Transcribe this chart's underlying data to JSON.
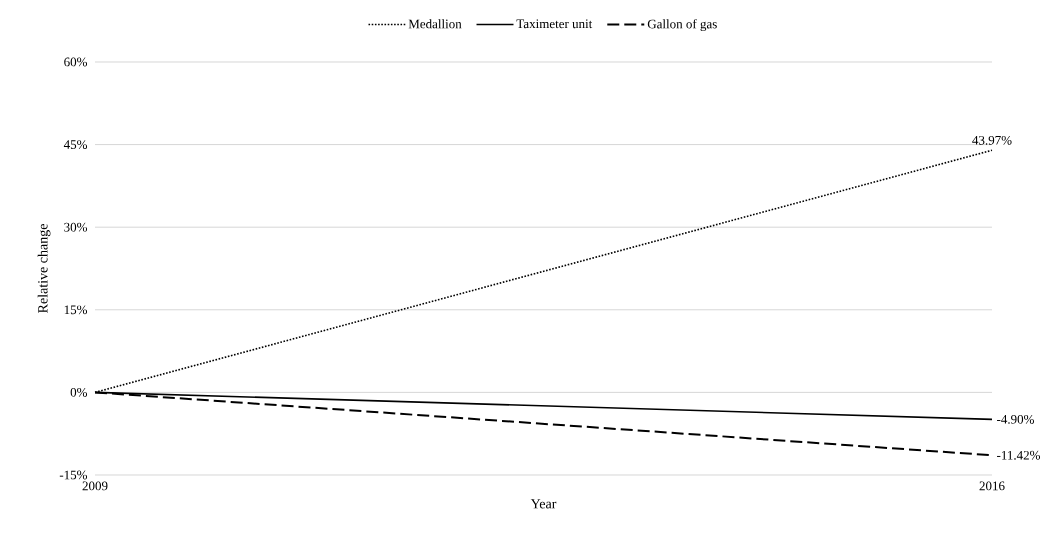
{
  "chart_data": {
    "type": "line",
    "xlabel": "Year",
    "ylabel": "Relative change",
    "x": [
      2009,
      2016
    ],
    "xlim": [
      2009,
      2016
    ],
    "xticks": [
      2009,
      2016
    ],
    "ylim": [
      -15,
      60
    ],
    "yticks": [
      {
        "value": -15,
        "label": "-15%"
      },
      {
        "value": 0,
        "label": "0%"
      },
      {
        "value": 15,
        "label": "15%"
      },
      {
        "value": 30,
        "label": "30%"
      },
      {
        "value": 45,
        "label": "45%"
      },
      {
        "value": 60,
        "label": "60%"
      }
    ],
    "grid": "y",
    "legend": "top",
    "marker": "none",
    "series": [
      {
        "name": "Medallion",
        "color": "#000000",
        "line_style": "dotted",
        "values": [
          0,
          43.97
        ],
        "value_labels": [
          null,
          "43.97%"
        ]
      },
      {
        "name": "Taximeter unit",
        "color": "#000000",
        "line_style": "solid",
        "values": [
          0,
          -4.9
        ],
        "value_labels": [
          null,
          "-4.90%"
        ]
      },
      {
        "name": "Gallon of gas",
        "color": "#000000",
        "line_style": "dashed",
        "values": [
          0,
          -11.42
        ],
        "value_labels": [
          null,
          "-11.42%"
        ]
      }
    ]
  }
}
